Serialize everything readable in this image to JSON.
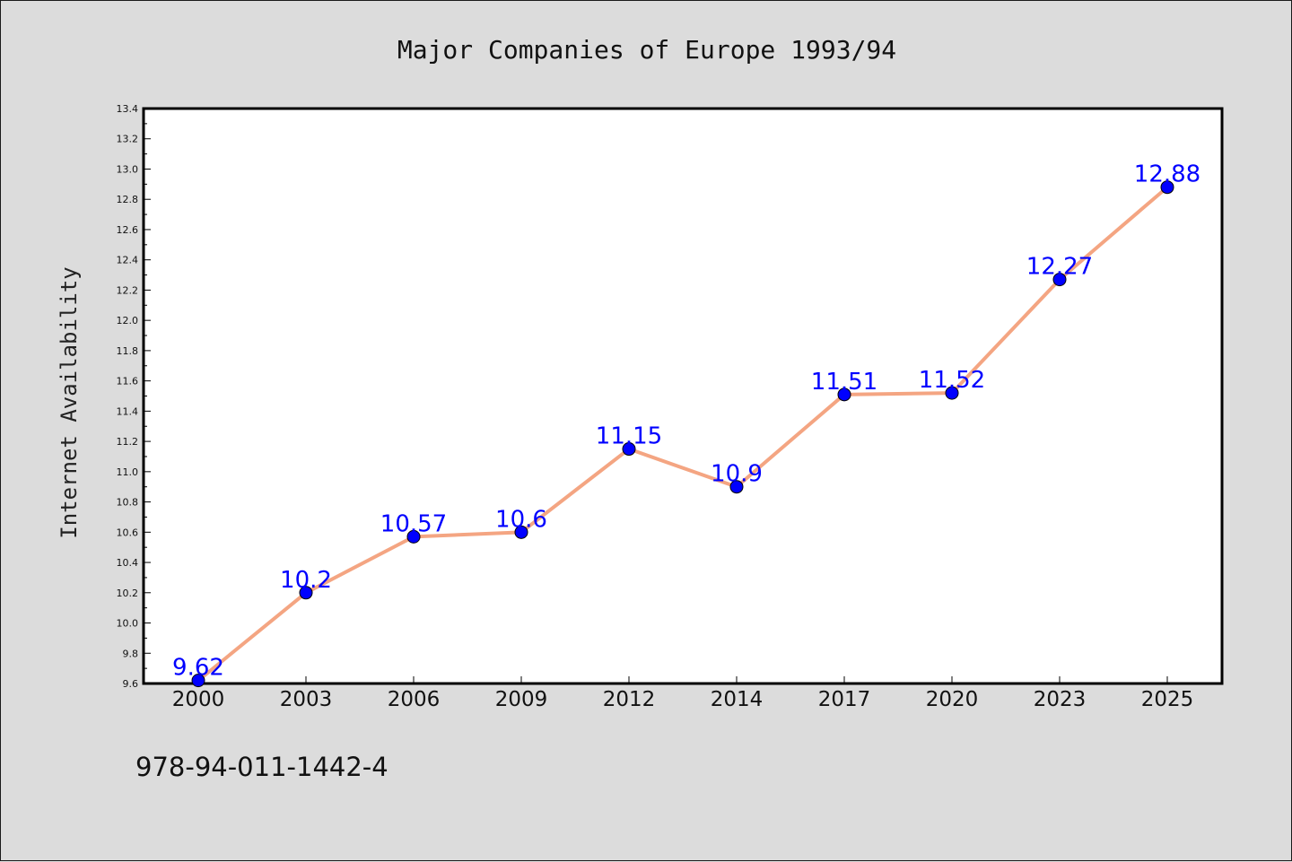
{
  "chart_data": {
    "type": "line",
    "title": "Major Companies of Europe 1993/94",
    "ylabel": "Internet Availability",
    "xlabel": "",
    "categories": [
      "2000",
      "2003",
      "2006",
      "2009",
      "2012",
      "2014",
      "2017",
      "2020",
      "2023",
      "2025"
    ],
    "series": [
      {
        "values": [
          9.62,
          10.2,
          10.57,
          10.6,
          11.15,
          10.9,
          11.51,
          11.52,
          12.27,
          12.88
        ],
        "labels": [
          "9.62",
          "10.2",
          "10.57",
          "10.6",
          "11.15",
          "10.9",
          "11.51",
          "11.52",
          "12.27",
          "12.88"
        ]
      }
    ],
    "ylim": [
      9.6,
      13.4
    ],
    "yticks": [
      "9.6",
      "9.8",
      "10.0",
      "10.2",
      "10.4",
      "10.6",
      "10.8",
      "11.0",
      "11.2",
      "11.4",
      "11.6",
      "11.8",
      "12.0",
      "12.2",
      "12.4",
      "12.6",
      "12.8",
      "13.0",
      "13.2",
      "13.4"
    ],
    "grid": false,
    "line_color": "#f4a582",
    "marker_color": "#0000ff",
    "label_color": "#0000ff"
  },
  "footer": {
    "text": "978-94-011-1442-4"
  }
}
